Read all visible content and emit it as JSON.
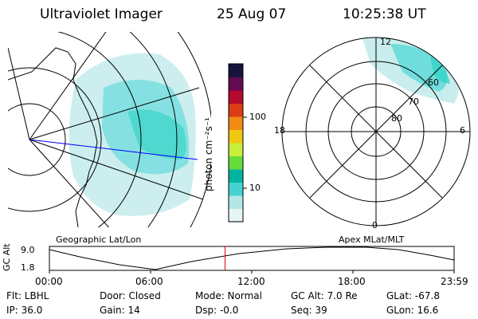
{
  "header": {
    "title": "Ultraviolet Imager",
    "date": "25 Aug 07",
    "time": "10:25:38 UT"
  },
  "colorbar": {
    "unit_label": "photon cm⁻²s⁻¹",
    "ticks": [
      "100",
      "10"
    ],
    "colors": [
      "#e6f4f4",
      "#b4e6e6",
      "#46d2d2",
      "#00b4a0",
      "#64dc3c",
      "#c8ee3c",
      "#f0c814",
      "#f08c14",
      "#dc3c14",
      "#b40a2d",
      "#640a50",
      "#14143c"
    ]
  },
  "left_panel": {
    "label": "Geographic Lat/Lon"
  },
  "right_panel": {
    "label": "Apex MLat/MLT",
    "mlt_labels": {
      "top": "12",
      "bottom": "0",
      "left": "18",
      "right": "6"
    },
    "lat_labels": [
      "60",
      "70",
      "80"
    ]
  },
  "timeline": {
    "axis_label": "GC Alt",
    "y_ticks": [
      "9.0",
      "1.8"
    ],
    "x_ticks": [
      "00:00",
      "06:00",
      "12:00",
      "18:00",
      "23:59"
    ],
    "current_time_fraction": 0.434
  },
  "status": {
    "flt": "Flt: LBHL",
    "ip": "IP: 36.0",
    "door": "Door: Closed",
    "gain": "Gain: 14",
    "mode": "Mode: Normal",
    "dsp": "Dsp:   -0.0",
    "gc_alt": "GC Alt: 7.0 Re",
    "seq": "Seq: 39",
    "glat": "GLat:  -67.8",
    "glon": "GLon:   16.6"
  }
}
